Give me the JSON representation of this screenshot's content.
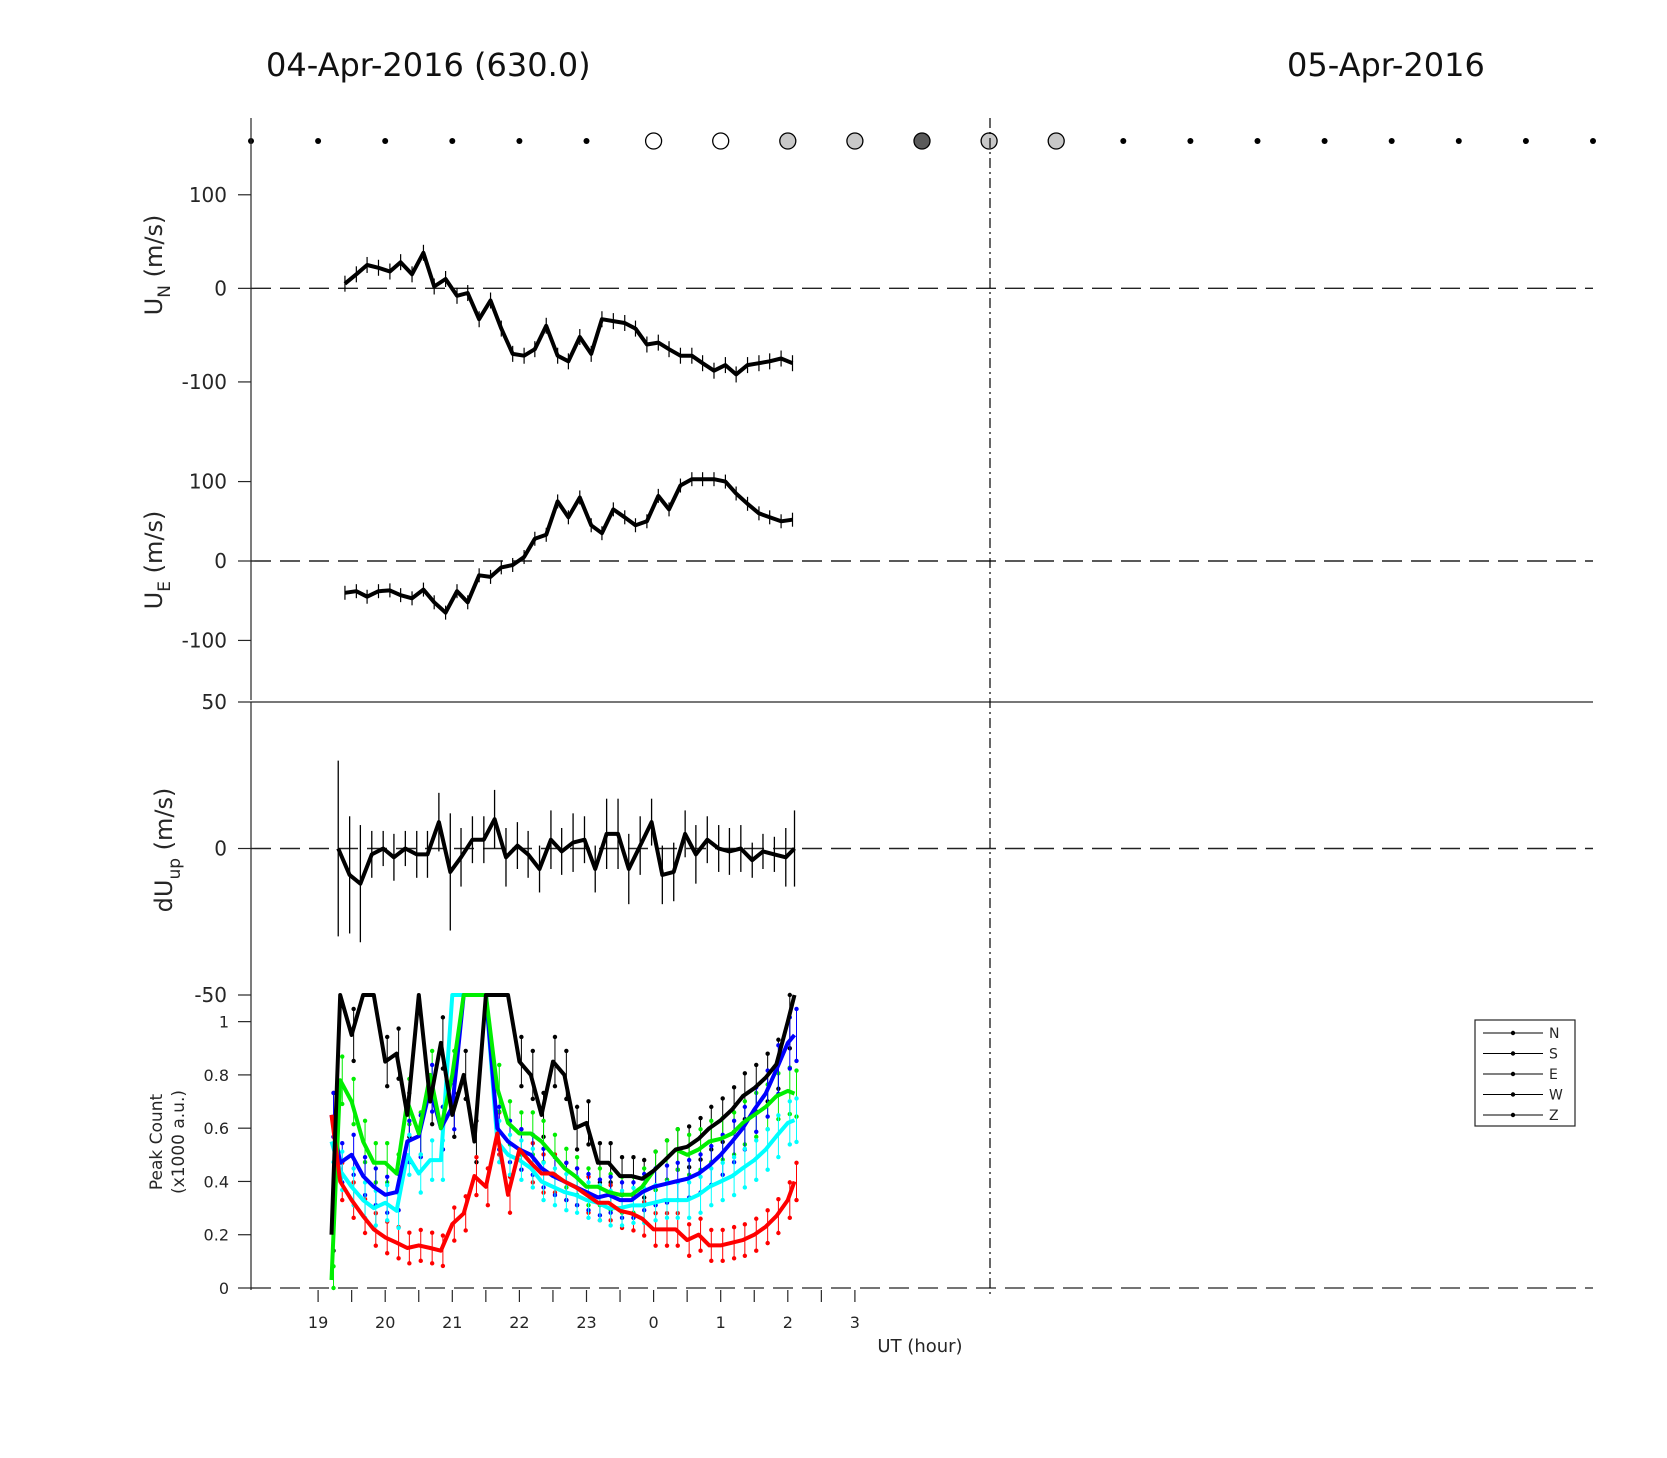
{
  "titles": {
    "left": "04-Apr-2016 (630.0)",
    "right": "05-Apr-2016"
  },
  "colors": {
    "N": "#000000",
    "S": "#ff0000",
    "E": "#00ee00",
    "W": "#0000ff",
    "Z": "#00ffff",
    "cloud_white": "#ffffff",
    "cloud_light": "#c8c8c8",
    "cloud_dark": "#5a5a5a"
  },
  "cloud_markers": {
    "note": "cloud-cover circles along top; none = small dot",
    "hours": [
      18,
      19,
      20,
      21,
      22,
      23,
      24,
      25,
      26,
      27,
      28,
      29,
      30,
      31,
      32,
      33,
      34,
      35,
      36,
      37,
      38
    ],
    "level": [
      "none",
      "none",
      "none",
      "none",
      "none",
      "none",
      "white",
      "white",
      "light",
      "light",
      "dark",
      "light",
      "light",
      "none",
      "none",
      "none",
      "none",
      "none",
      "none",
      "none",
      "none"
    ]
  },
  "chart_data": [
    {
      "type": "line",
      "ylabel": "U_N (m/s)",
      "ylim": [
        -130,
        150
      ],
      "yticks": [
        "100",
        "0",
        "-100"
      ],
      "x": [
        19.4,
        19.57,
        19.73,
        19.9,
        20.07,
        20.23,
        20.4,
        20.57,
        20.73,
        20.9,
        21.07,
        21.23,
        21.4,
        21.57,
        21.73,
        21.9,
        22.07,
        22.23,
        22.4,
        22.57,
        22.73,
        22.9,
        23.07,
        23.23,
        23.4,
        23.57,
        23.73,
        23.9,
        24.07,
        24.23,
        24.4,
        24.57,
        24.73,
        24.9,
        25.07,
        25.23,
        25.4,
        25.57,
        25.73,
        25.9,
        26.07
      ],
      "values": [
        5,
        15,
        25,
        22,
        18,
        28,
        15,
        38,
        2,
        10,
        -8,
        -5,
        -33,
        -13,
        -43,
        -70,
        -72,
        -65,
        -40,
        -72,
        -78,
        -52,
        -70,
        -33,
        -35,
        -37,
        -43,
        -60,
        -58,
        -65,
        -72,
        -72,
        -80,
        -88,
        -82,
        -92,
        -82,
        -80,
        -78,
        -75,
        -80
      ]
    },
    {
      "type": "line",
      "ylabel": "U_E (m/s)",
      "ylim": [
        -175,
        175
      ],
      "yticks": [
        "100",
        "0",
        "-100"
      ],
      "x": [
        19.4,
        19.57,
        19.73,
        19.9,
        20.07,
        20.23,
        20.4,
        20.57,
        20.73,
        20.9,
        21.07,
        21.23,
        21.4,
        21.57,
        21.73,
        21.9,
        22.07,
        22.23,
        22.4,
        22.57,
        22.73,
        22.9,
        23.07,
        23.23,
        23.4,
        23.57,
        23.73,
        23.9,
        24.07,
        24.23,
        24.4,
        24.57,
        24.73,
        24.9,
        25.07,
        25.23,
        25.4,
        25.57,
        25.73,
        25.9,
        26.07
      ],
      "values": [
        -40,
        -38,
        -45,
        -38,
        -37,
        -43,
        -47,
        -36,
        -52,
        -65,
        -38,
        -52,
        -18,
        -20,
        -8,
        -5,
        5,
        28,
        33,
        75,
        55,
        80,
        45,
        35,
        65,
        55,
        45,
        50,
        82,
        65,
        95,
        103,
        103,
        103,
        100,
        85,
        72,
        60,
        55,
        50,
        52
      ]
    },
    {
      "type": "line",
      "ylabel": "dU_up (m/s)",
      "ylim": [
        -50,
        50
      ],
      "yticks": [
        "50",
        "0",
        "-50"
      ],
      "x": [
        19.3,
        19.47,
        19.63,
        19.8,
        19.97,
        20.13,
        20.3,
        20.47,
        20.63,
        20.8,
        20.97,
        21.13,
        21.3,
        21.47,
        21.63,
        21.8,
        21.97,
        22.13,
        22.3,
        22.47,
        22.63,
        22.8,
        22.97,
        23.13,
        23.3,
        23.47,
        23.63,
        23.8,
        23.97,
        24.13,
        24.3,
        24.47,
        24.63,
        24.8,
        24.97,
        25.13,
        25.3,
        25.47,
        25.63,
        25.8,
        25.97,
        26.1
      ],
      "values": [
        0,
        -9,
        -12,
        -2,
        0,
        -3,
        0,
        -2,
        -2,
        9,
        -8,
        -3,
        3,
        3,
        10,
        -3,
        1,
        -2,
        -7,
        3,
        -1,
        2,
        3,
        -7,
        5,
        5,
        -7,
        1,
        9,
        -9,
        -8,
        5,
        -2,
        3,
        0,
        -1,
        0,
        -4,
        -1,
        -2,
        -3,
        0
      ],
      "errors": [
        30,
        20,
        20,
        8,
        6,
        8,
        6,
        8,
        8,
        10,
        20,
        10,
        8,
        8,
        10,
        10,
        8,
        8,
        8,
        10,
        8,
        10,
        8,
        8,
        12,
        12,
        12,
        10,
        8,
        10,
        10,
        8,
        10,
        8,
        8,
        8,
        8,
        6,
        6,
        6,
        10,
        13
      ]
    },
    {
      "type": "line",
      "ylabel": "Peak Count (x1000 a.u.)",
      "xlabel": "UT (hour)",
      "ylim": [
        0,
        1.1
      ],
      "yticks": [
        "1",
        "0.8",
        "0.6",
        "0.4",
        "0.2",
        "0"
      ],
      "xtick_labels": [
        "19",
        "20",
        "21",
        "22",
        "23",
        "0",
        "1",
        "2",
        "3"
      ],
      "legend": [
        "N",
        "S",
        "E",
        "W",
        "Z"
      ],
      "legend_position": "right",
      "x": [
        19.2,
        19.33,
        19.5,
        19.67,
        19.83,
        20.0,
        20.17,
        20.33,
        20.5,
        20.67,
        20.83,
        21.0,
        21.17,
        21.33,
        21.5,
        21.67,
        21.83,
        22.0,
        22.17,
        22.33,
        22.5,
        22.67,
        22.83,
        23.0,
        23.17,
        23.33,
        23.5,
        23.67,
        23.83,
        24.0,
        24.17,
        24.33,
        24.5,
        24.67,
        24.83,
        25.0,
        25.17,
        25.33,
        25.5,
        25.67,
        25.83,
        26.0,
        26.1
      ],
      "series": [
        {
          "name": "N",
          "values": [
            0.2,
            1.1,
            0.95,
            1.1,
            1.1,
            0.85,
            0.88,
            0.65,
            1.1,
            0.7,
            0.92,
            0.65,
            0.8,
            0.55,
            1.1,
            1.1,
            1.1,
            0.85,
            0.8,
            0.65,
            0.85,
            0.8,
            0.6,
            0.62,
            0.47,
            0.47,
            0.42,
            0.42,
            0.41,
            0.44,
            0.48,
            0.52,
            0.53,
            0.56,
            0.6,
            0.63,
            0.67,
            0.72,
            0.75,
            0.79,
            0.84,
            1.0,
            1.1
          ]
        },
        {
          "name": "S",
          "values": [
            0.65,
            0.4,
            0.33,
            0.27,
            0.22,
            0.19,
            0.17,
            0.15,
            0.16,
            0.15,
            0.14,
            0.24,
            0.28,
            0.42,
            0.38,
            0.58,
            0.35,
            0.52,
            0.47,
            0.43,
            0.43,
            0.4,
            0.38,
            0.35,
            0.32,
            0.32,
            0.29,
            0.28,
            0.26,
            0.22,
            0.22,
            0.22,
            0.18,
            0.2,
            0.16,
            0.16,
            0.17,
            0.18,
            0.2,
            0.23,
            0.27,
            0.33,
            0.4
          ]
        },
        {
          "name": "E",
          "values": [
            0.03,
            0.78,
            0.7,
            0.55,
            0.47,
            0.47,
            0.43,
            0.7,
            0.58,
            0.8,
            0.6,
            0.8,
            1.1,
            1.1,
            1.1,
            0.75,
            0.62,
            0.58,
            0.58,
            0.55,
            0.5,
            0.45,
            0.42,
            0.38,
            0.38,
            0.36,
            0.35,
            0.35,
            0.38,
            0.44,
            0.48,
            0.52,
            0.5,
            0.52,
            0.55,
            0.56,
            0.58,
            0.62,
            0.65,
            0.68,
            0.72,
            0.74,
            0.73
          ]
        },
        {
          "name": "W",
          "values": [
            0.65,
            0.47,
            0.5,
            0.42,
            0.38,
            0.35,
            0.36,
            0.55,
            0.57,
            0.75,
            0.6,
            0.68,
            1.1,
            1.1,
            1.1,
            0.6,
            0.55,
            0.52,
            0.5,
            0.45,
            0.42,
            0.4,
            0.38,
            0.36,
            0.34,
            0.35,
            0.33,
            0.33,
            0.36,
            0.38,
            0.39,
            0.4,
            0.41,
            0.43,
            0.46,
            0.5,
            0.55,
            0.6,
            0.67,
            0.73,
            0.82,
            0.92,
            0.95
          ]
        },
        {
          "name": "Z",
          "values": [
            0.55,
            0.44,
            0.38,
            0.33,
            0.3,
            0.32,
            0.29,
            0.5,
            0.43,
            0.48,
            0.48,
            1.1,
            1.1,
            1.1,
            1.1,
            0.55,
            0.5,
            0.48,
            0.45,
            0.4,
            0.38,
            0.36,
            0.35,
            0.33,
            0.32,
            0.3,
            0.3,
            0.31,
            0.31,
            0.32,
            0.33,
            0.33,
            0.33,
            0.35,
            0.38,
            0.4,
            0.42,
            0.45,
            0.48,
            0.52,
            0.57,
            0.62,
            0.63
          ]
        }
      ]
    }
  ]
}
